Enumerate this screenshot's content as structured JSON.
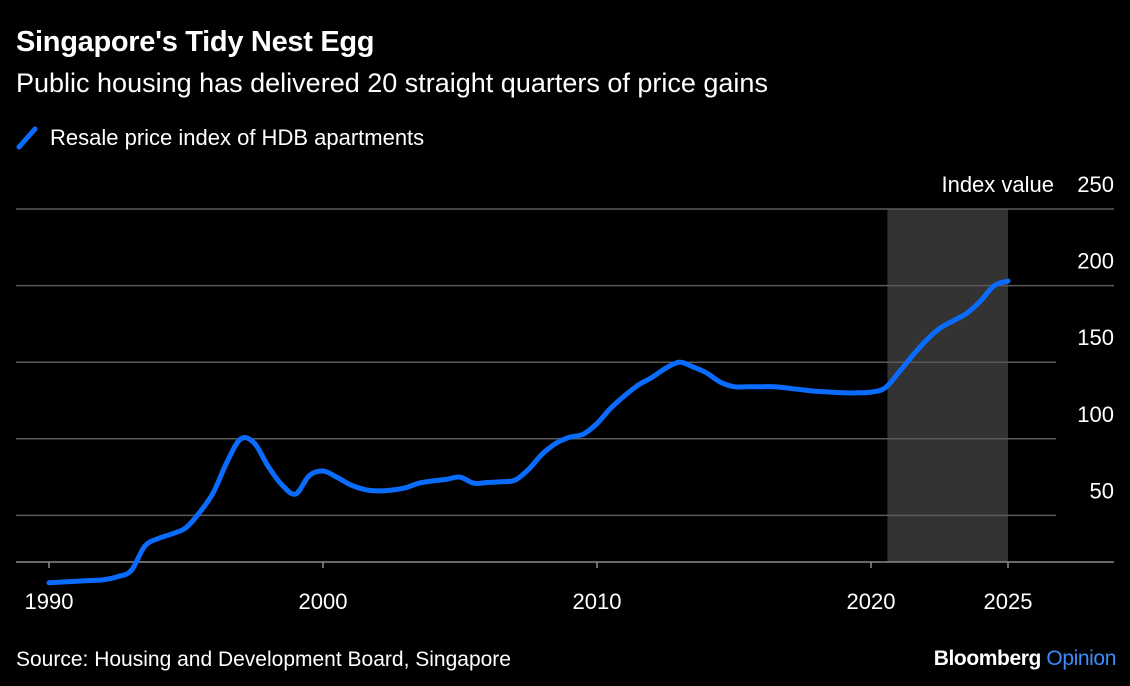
{
  "title": "Singapore's Tidy Nest Egg",
  "subtitle": "Public housing has delivered 20 straight quarters of price gains",
  "legend": {
    "label": "Resale price index of HDB apartments",
    "color": "#0a6cff"
  },
  "source": "Source: Housing and Development Board, Singapore",
  "brand": {
    "name": "Bloomberg",
    "suffix": "Opinion"
  },
  "colors": {
    "line": "#0a6cff",
    "grid": "#5a5a5a",
    "shade": "#333333",
    "background": "#000000"
  },
  "chart_data": {
    "type": "line",
    "ylabel": "Index value",
    "ylim": [
      0,
      250
    ],
    "yticks": [
      50,
      100,
      150,
      200,
      250
    ],
    "xlim": [
      1990,
      2025
    ],
    "xticks": [
      1990,
      2000,
      2010,
      2020,
      2025
    ],
    "shaded_region": [
      2020.6,
      2025
    ],
    "grid": true,
    "series": [
      {
        "name": "Resale price index of HDB apartments",
        "points": [
          [
            1990.0,
            6
          ],
          [
            1990.5,
            6.5
          ],
          [
            1991.0,
            7
          ],
          [
            1991.5,
            7.5
          ],
          [
            1992.0,
            8
          ],
          [
            1992.5,
            10
          ],
          [
            1993.0,
            14
          ],
          [
            1993.5,
            30
          ],
          [
            1994.0,
            35
          ],
          [
            1994.5,
            38
          ],
          [
            1995.0,
            42
          ],
          [
            1995.5,
            52
          ],
          [
            1996.0,
            65
          ],
          [
            1996.5,
            85
          ],
          [
            1997.0,
            100
          ],
          [
            1997.5,
            97
          ],
          [
            1998.0,
            82
          ],
          [
            1998.5,
            70
          ],
          [
            1999.0,
            64
          ],
          [
            1999.5,
            76
          ],
          [
            2000.0,
            79
          ],
          [
            2000.5,
            75
          ],
          [
            2001.0,
            70
          ],
          [
            2001.5,
            67
          ],
          [
            2002.0,
            66
          ],
          [
            2002.5,
            66.5
          ],
          [
            2003.0,
            68
          ],
          [
            2003.5,
            71
          ],
          [
            2004.0,
            72.5
          ],
          [
            2004.5,
            73.5
          ],
          [
            2005.0,
            75
          ],
          [
            2005.5,
            71
          ],
          [
            2006.0,
            71.5
          ],
          [
            2006.5,
            72
          ],
          [
            2007.0,
            73
          ],
          [
            2007.5,
            80
          ],
          [
            2008.0,
            90
          ],
          [
            2008.5,
            97
          ],
          [
            2009.0,
            101
          ],
          [
            2009.5,
            103
          ],
          [
            2010.0,
            110
          ],
          [
            2010.5,
            120
          ],
          [
            2011.0,
            128
          ],
          [
            2011.5,
            135
          ],
          [
            2012.0,
            140
          ],
          [
            2012.5,
            146
          ],
          [
            2013.0,
            150
          ],
          [
            2013.5,
            147
          ],
          [
            2014.0,
            143
          ],
          [
            2014.5,
            137
          ],
          [
            2015.0,
            134
          ],
          [
            2015.5,
            134
          ],
          [
            2016.0,
            134
          ],
          [
            2016.5,
            134
          ],
          [
            2017.0,
            133
          ],
          [
            2017.5,
            132
          ],
          [
            2018.0,
            131
          ],
          [
            2018.5,
            130.5
          ],
          [
            2019.0,
            130
          ],
          [
            2019.5,
            130
          ],
          [
            2020.0,
            130.5
          ],
          [
            2020.5,
            133
          ],
          [
            2021.0,
            143
          ],
          [
            2021.5,
            154
          ],
          [
            2022.0,
            164
          ],
          [
            2022.5,
            172
          ],
          [
            2023.0,
            177
          ],
          [
            2023.5,
            182
          ],
          [
            2024.0,
            190
          ],
          [
            2024.5,
            200
          ],
          [
            2025.0,
            203
          ]
        ]
      }
    ]
  }
}
